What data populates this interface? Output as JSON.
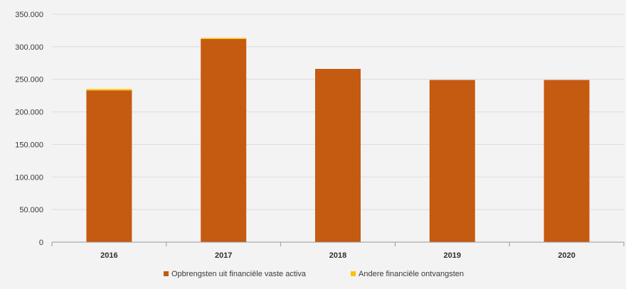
{
  "chart_data": {
    "type": "bar",
    "stacked": true,
    "categories": [
      "2016",
      "2017",
      "2018",
      "2019",
      "2020"
    ],
    "series": [
      {
        "name": "Opbrengsten uit financiële vaste activa",
        "color": "#c55a11",
        "values": [
          233000,
          312000,
          266000,
          249000,
          249000
        ]
      },
      {
        "name": "Andere financiële ontvangsten",
        "color": "#ffc000",
        "values": [
          2000,
          1500,
          0,
          0,
          0
        ]
      }
    ],
    "ylim": [
      0,
      350000
    ],
    "yticks": [
      0,
      50000,
      100000,
      150000,
      200000,
      250000,
      300000,
      350000
    ],
    "ytick_labels": [
      "0",
      "50.000",
      "100.000",
      "150.000",
      "200.000",
      "250.000",
      "300.000",
      "350.000"
    ],
    "grid": true,
    "legend_position": "bottom",
    "xlabel": "",
    "ylabel": "",
    "title": ""
  }
}
